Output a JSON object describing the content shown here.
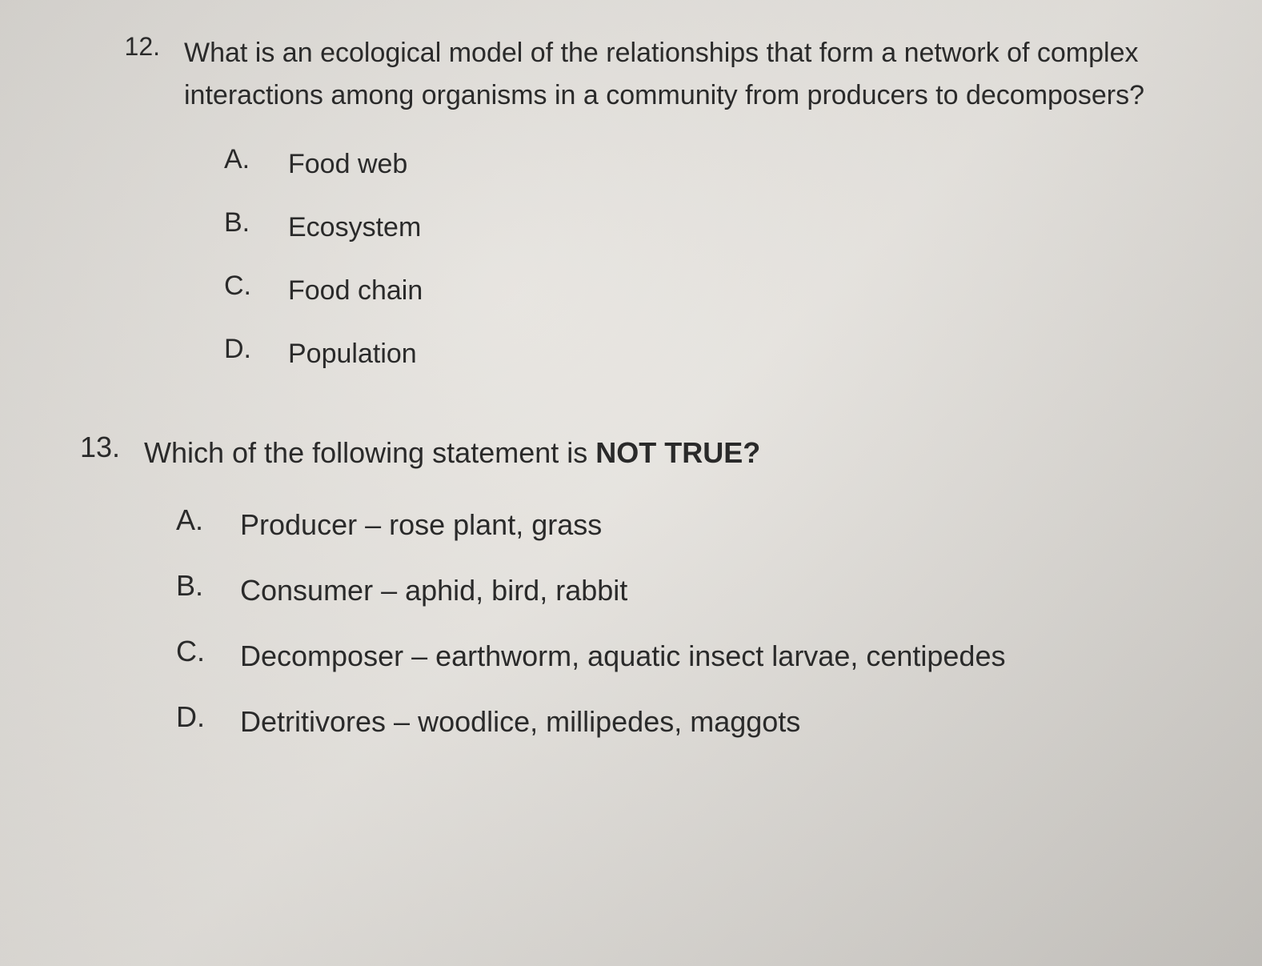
{
  "questions": [
    {
      "number": "12.",
      "text": "What is an ecological model of the relationships that form a network of complex interactions among organisms in a community from producers to decomposers?",
      "options": [
        {
          "letter": "A.",
          "text": "Food web"
        },
        {
          "letter": "B.",
          "text": "Ecosystem"
        },
        {
          "letter": "C.",
          "text": "Food chain"
        },
        {
          "letter": "D.",
          "text": "Population"
        }
      ]
    },
    {
      "number": "13.",
      "text_prefix": "Which of the following statement is ",
      "text_emphasis": "NOT TRUE?",
      "options": [
        {
          "letter": "A.",
          "text": "Producer – rose plant, grass"
        },
        {
          "letter": "B.",
          "text": "Consumer – aphid, bird, rabbit"
        },
        {
          "letter": "C.",
          "text": "Decomposer – earthworm, aquatic insect larvae, centipedes"
        },
        {
          "letter": "D.",
          "text": "Detritivores – woodlice, millipedes, maggots"
        }
      ]
    }
  ],
  "styling": {
    "background_gradient_start": "#d8d5d0",
    "background_gradient_mid": "#e8e5e0",
    "background_gradient_end": "#d0cdc8",
    "text_color": "#2a2a2a",
    "font_family": "Arial",
    "q12_font_size": 34,
    "q13_font_size": 36,
    "line_height": 1.55,
    "question_number_width": 60,
    "options_indent_q12": 140,
    "options_indent_q13": 130,
    "option_letter_width": 40,
    "option_gap": 40,
    "question_gap": 30,
    "option_row_spacing": 28,
    "question_block_spacing": 70
  }
}
